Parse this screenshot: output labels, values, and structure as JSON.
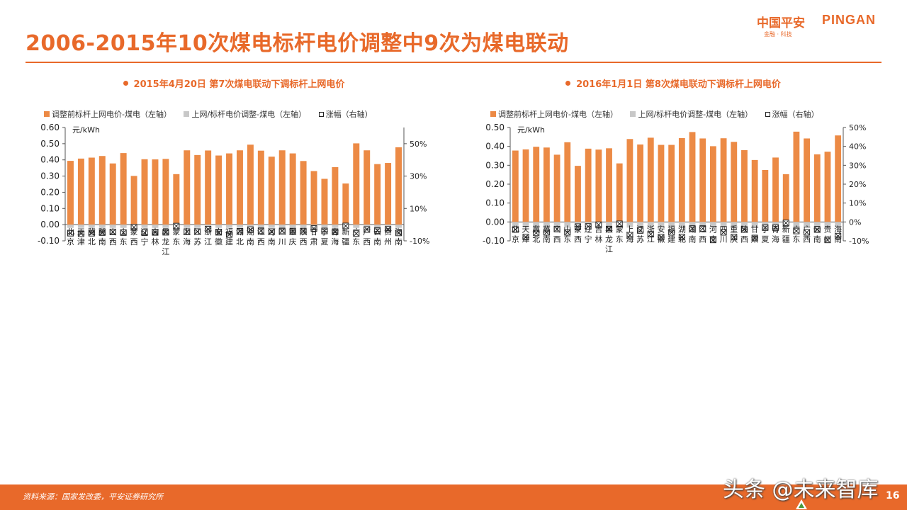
{
  "page": {
    "title": "2006-2015年10次煤电标杆电价调整中9次为煤电联动",
    "logo_cn": "中国平安",
    "logo_en": "PINGAN",
    "logo_sub": "金融 · 科技",
    "source": "资料来源：国家发改委，平安证券研究所",
    "page_number": "16",
    "watermark": "头条 @未来智库",
    "accent_color": "#e8692a"
  },
  "legend": {
    "series1": "调整前标杆上网电价-煤电（左轴）",
    "series2": "上网/标杆电价调整-煤电（左轴）",
    "series3": "涨幅（右轴）"
  },
  "chart_data": [
    {
      "type": "bar",
      "title": "2015年4月20日 第7次煤电联动下调标杆上网电价",
      "ylabel": "元/kWh",
      "ylim": [
        -0.1,
        0.6
      ],
      "yticks": [
        "0.60",
        "0.50",
        "0.40",
        "0.30",
        "0.20",
        "0.10",
        "0.00",
        "-0.10"
      ],
      "y2lim": [
        -10,
        60
      ],
      "y2ticks": [
        "50%",
        "30%",
        "10%",
        "-10%"
      ],
      "categories": [
        "北京",
        "天津",
        "冀北",
        "冀南",
        "山西",
        "山东",
        "蒙西",
        "辽宁",
        "吉林",
        "黑龙江",
        "蒙东",
        "上海",
        "江苏",
        "浙江",
        "安徽",
        "福建",
        "湖北",
        "湖南",
        "江西",
        "河南",
        "四川",
        "重庆",
        "陕西",
        "甘肃",
        "宁夏",
        "青海",
        "新疆",
        "广东",
        "广西",
        "云南",
        "贵州",
        "海南"
      ],
      "series": [
        {
          "name": "调整前标杆上网电价-煤电（左轴）",
          "values": [
            0.394,
            0.408,
            0.414,
            0.424,
            0.378,
            0.442,
            0.301,
            0.404,
            0.403,
            0.406,
            0.312,
            0.459,
            0.43,
            0.458,
            0.427,
            0.44,
            0.459,
            0.494,
            0.457,
            0.42,
            0.459,
            0.44,
            0.393,
            0.331,
            0.283,
            0.355,
            0.254,
            0.502,
            0.459,
            0.374,
            0.381,
            0.478
          ]
        },
        {
          "name": "上网/标杆电价调整-煤电（左轴）",
          "values": [
            -0.02,
            -0.02,
            -0.02,
            -0.02,
            -0.02,
            -0.02,
            -0.02,
            -0.02,
            -0.02,
            -0.02,
            -0.02,
            -0.02,
            -0.02,
            -0.02,
            -0.02,
            -0.02,
            -0.02,
            -0.02,
            -0.02,
            -0.02,
            -0.02,
            -0.02,
            -0.02,
            -0.02,
            -0.02,
            -0.02,
            -0.02,
            -0.02,
            -0.02,
            -0.02,
            -0.02,
            -0.02
          ]
        },
        {
          "name": "涨幅（右轴）",
          "values": [
            -5.3,
            -5.6,
            -5.3,
            -4.9,
            -4.5,
            -4.9,
            -1.6,
            -5.0,
            -4.8,
            -4.7,
            -0.9,
            -4.3,
            -4.3,
            -2.8,
            -4.7,
            -6.1,
            -4.1,
            -3.1,
            -3.8,
            -4.4,
            -3.9,
            -4.0,
            -4.0,
            -2.4,
            -3.9,
            -4.4,
            -0.8,
            -5.5,
            -3.0,
            -3.6,
            -2.9,
            -5.1
          ]
        }
      ]
    },
    {
      "type": "bar",
      "title": "2016年1月1日 第8次煤电联动下调标杆上网电价",
      "ylabel": "元/kWh",
      "ylim": [
        -0.1,
        0.5
      ],
      "yticks": [
        "0.50",
        "0.40",
        "0.30",
        "0.20",
        "0.10",
        "0.00",
        "-0.10"
      ],
      "y2lim": [
        -10,
        50
      ],
      "y2ticks": [
        "50%",
        "40%",
        "30%",
        "20%",
        "10%",
        "0%",
        "-10%"
      ],
      "categories": [
        "北京",
        "天津",
        "冀北",
        "冀南",
        "山西",
        "山东",
        "蒙西",
        "辽宁",
        "吉林",
        "黑龙江",
        "蒙东",
        "上海",
        "江苏",
        "浙江",
        "安徽",
        "福建",
        "湖北",
        "湖南",
        "江西",
        "河南",
        "四川",
        "重庆",
        "陕西",
        "甘肃",
        "宁夏",
        "青海",
        "新疆",
        "广东",
        "广西",
        "云南",
        "贵州",
        "海南"
      ],
      "series": [
        {
          "name": "调整前标杆上网电价-煤电（左轴）",
          "values": [
            0.378,
            0.384,
            0.398,
            0.394,
            0.356,
            0.422,
            0.297,
            0.388,
            0.383,
            0.39,
            0.31,
            0.439,
            0.41,
            0.446,
            0.408,
            0.408,
            0.444,
            0.476,
            0.442,
            0.401,
            0.443,
            0.424,
            0.38,
            0.328,
            0.275,
            0.341,
            0.253,
            0.478,
            0.442,
            0.358,
            0.372,
            0.458
          ]
        },
        {
          "name": "上网/标杆电价调整-煤电（左轴）",
          "values": [
            -0.03,
            -0.03,
            -0.03,
            -0.03,
            -0.03,
            -0.03,
            -0.03,
            -0.03,
            -0.03,
            -0.03,
            -0.03,
            -0.03,
            -0.03,
            -0.03,
            -0.03,
            -0.03,
            -0.03,
            -0.03,
            -0.03,
            -0.03,
            -0.03,
            -0.03,
            -0.03,
            -0.03,
            -0.03,
            -0.03,
            -0.03,
            -0.03,
            -0.03,
            -0.03,
            -0.03,
            -0.03
          ]
        },
        {
          "name": "涨幅（右轴）",
          "values": [
            -4.0,
            -8.0,
            -5.8,
            -5.5,
            -3.8,
            -5.5,
            -2.5,
            -2.4,
            -1.5,
            -3.8,
            -1.0,
            -7.0,
            -4.5,
            -6.5,
            -8.0,
            -5.5,
            -8.0,
            -3.5,
            -3.5,
            -9.5,
            -5.5,
            -8.0,
            -4.0,
            -8.5,
            -3.0,
            -3.0,
            -0.5,
            -4.8,
            -5.5,
            -4.0,
            -9.5,
            -7.5
          ]
        }
      ]
    }
  ]
}
